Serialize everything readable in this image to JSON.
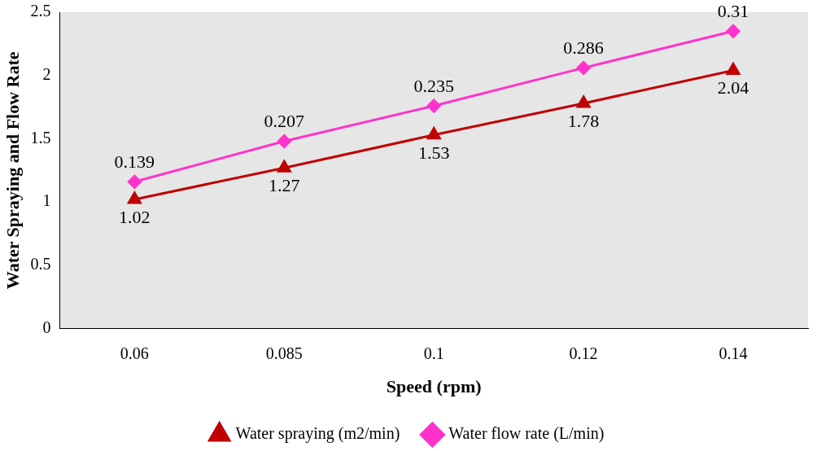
{
  "chart_data": {
    "type": "line",
    "xlabel": "Speed (rpm)",
    "ylabel": "Water Spraying and Flow Rate",
    "categories": [
      "0.06",
      "0.085",
      "0.1",
      "0.12",
      "0.14"
    ],
    "series": [
      {
        "name": "Water spraying (m2/min)",
        "color": "#c00000",
        "marker": "triangle",
        "values": [
          1.02,
          1.27,
          1.53,
          1.78,
          2.04
        ],
        "value_labels": [
          "1.02",
          "1.27",
          "1.53",
          "1.78",
          "2.04"
        ]
      },
      {
        "name": "Water flow rate (L/min)",
        "color": "#ff33cc",
        "marker": "diamond",
        "values": [
          1.16,
          1.48,
          1.76,
          2.06,
          2.35
        ]
      }
    ],
    "annotations": [
      {
        "text": "0.139",
        "x": "0.06",
        "y": 1.16
      },
      {
        "text": "0.207",
        "x": "0.085",
        "y": 1.48
      },
      {
        "text": "0.235",
        "x": "0.1",
        "y": 1.76
      },
      {
        "text": "0.286",
        "x": "0.12",
        "y": 2.06
      },
      {
        "text": "0.31",
        "x": "0.14",
        "y": 2.35
      }
    ],
    "ylim": [
      0,
      2.5
    ],
    "yticks": [
      0,
      0.5,
      1,
      1.5,
      2,
      2.5
    ],
    "grid": false,
    "legend": "bottom",
    "line_style": "solid"
  }
}
